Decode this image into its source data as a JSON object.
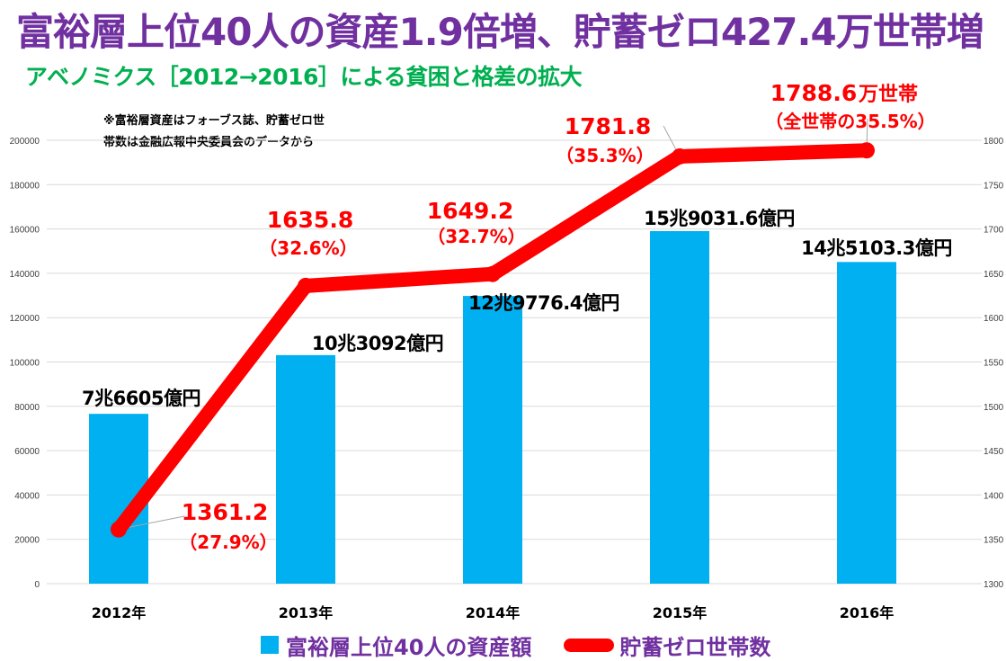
{
  "title": "富裕層上位40人の資産1.9倍増、貯蓄ゼロ427.4万世帯増",
  "subtitle": "アベノミクス［2012→2016］による貧困と格差の拡大",
  "note": {
    "line1": "※富裕層資産はフォーブス誌、貯蓄ゼロ世",
    "line2": "帯数は金融広報中央委員会のデータから"
  },
  "colors": {
    "bar": "#00b0f0",
    "line": "#ff0000",
    "title": "#7030a0",
    "subtitle": "#00b050",
    "grid": "#d9d9d9"
  },
  "legend": {
    "bar_label": "富裕層上位40人の資産額",
    "line_label": "貯蓄ゼロ世帯数"
  },
  "chart_data": {
    "type": "bar",
    "categories": [
      "2012年",
      "2013年",
      "2014年",
      "2015年",
      "2016年"
    ],
    "series": [
      {
        "name": "富裕層上位40人の資産額",
        "type": "bar",
        "axis": "left",
        "values": [
          76605,
          103092,
          129776.4,
          159031.6,
          145103.3
        ],
        "labels": [
          "7兆6605億円",
          "10兆3092億円",
          "12兆9776.4億円",
          "15兆9031.6億円",
          "14兆5103.3億円"
        ]
      },
      {
        "name": "貯蓄ゼロ世帯数",
        "type": "line",
        "axis": "right",
        "values": [
          1361.2,
          1635.8,
          1649.2,
          1781.8,
          1788.6
        ],
        "labels": [
          "1361.2",
          "1635.8",
          "1649.2",
          "1781.8",
          "1788.6"
        ],
        "pct_labels": [
          "（27.9%）",
          "（32.6%）",
          "（32.7%）",
          "（35.3%）",
          "（全世帯の35.5%）"
        ],
        "unit_label": "万世帯"
      }
    ],
    "yleft": {
      "lim": [
        0,
        200000
      ],
      "ticks": [
        "0",
        "20000",
        "40000",
        "60000",
        "80000",
        "100000",
        "120000",
        "140000",
        "160000",
        "180000",
        "200000"
      ]
    },
    "yright": {
      "lim": [
        1300,
        1800
      ],
      "ticks": [
        "1300",
        "1350",
        "1400",
        "1450",
        "1500",
        "1550",
        "1600",
        "1650",
        "1700",
        "1750",
        "1800"
      ]
    },
    "grid": true,
    "legend_position": "bottom"
  }
}
